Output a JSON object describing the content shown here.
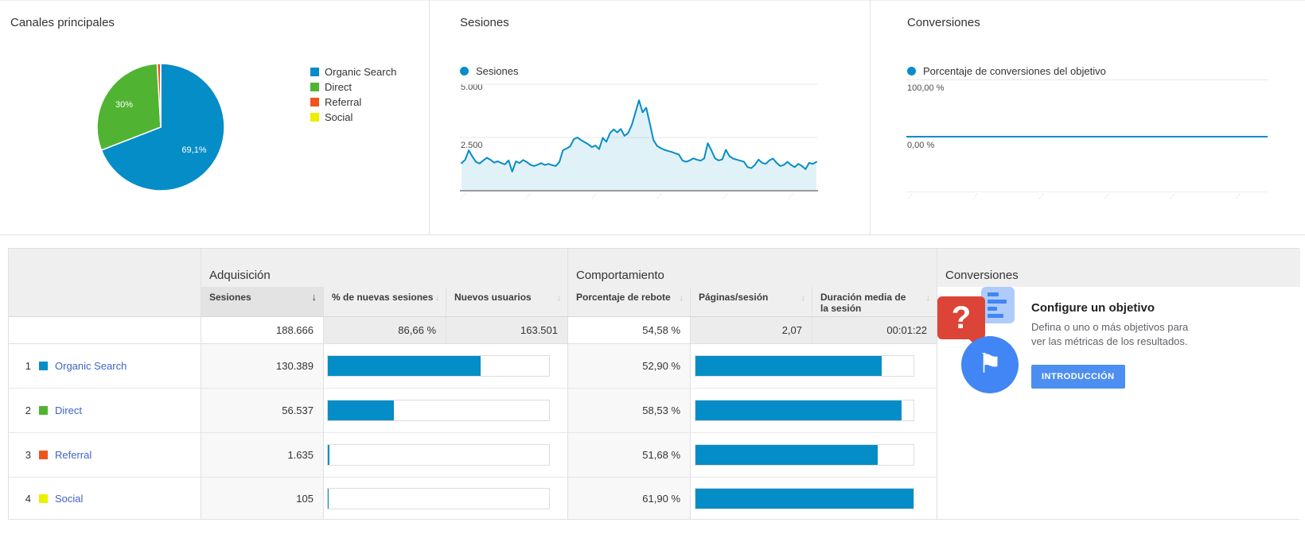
{
  "cards": {
    "channels": {
      "title": "Canales principales"
    },
    "sessions": {
      "title": "Sesiones",
      "legend_label": "Sesiones",
      "y_tick_top": "5.000",
      "y_tick_mid": "2.500"
    },
    "conversions": {
      "title": "Conversiones",
      "legend_label": "Porcentaje de conversiones del objetivo",
      "y_tick_top": "100,00 %",
      "y_tick_zero": "0,00 %"
    }
  },
  "colors": {
    "chart_blue": "#058dc7",
    "green": "#50b432",
    "orange": "#ed561b",
    "yellow": "#edef00",
    "link_blue": "#3f63c9",
    "promo_red": "#db4437",
    "promo_blue": "#4285f4",
    "button_blue": "#4d8ff0"
  },
  "chart_data": [
    {
      "type": "pie",
      "title": "Canales principales",
      "labels": [
        "Organic Search",
        "Direct",
        "Referral",
        "Social"
      ],
      "values_pct": [
        69.1,
        30.0,
        0.85,
        0.05
      ],
      "colors": [
        "#058dc7",
        "#50b432",
        "#ed561b",
        "#edef00"
      ],
      "slice_annotations": [
        "69,1%",
        "30%"
      ],
      "legend_position": "right"
    },
    {
      "type": "area",
      "title": "Sesiones",
      "series": [
        {
          "name": "Sesiones",
          "values": [
            1300,
            1450,
            1900,
            1600,
            1350,
            1280,
            1420,
            1550,
            1450,
            1320,
            1380,
            1300,
            1240,
            1420,
            900,
            1380,
            1300,
            1440,
            1350,
            1220,
            1160,
            1220,
            1300,
            1210,
            1260,
            1200,
            1160,
            1340,
            1900,
            1980,
            2080,
            2420,
            2500,
            2380,
            2280,
            2180,
            2050,
            2120,
            1950,
            2480,
            2300,
            2700,
            2880,
            2740,
            2900,
            2580,
            2700,
            3080,
            3650,
            4250,
            3680,
            3900,
            3150,
            2380,
            2100,
            2000,
            1920,
            1870,
            1820,
            1760,
            1700,
            1420,
            1360,
            1420,
            1520,
            1460,
            1410,
            1510,
            2230,
            1900,
            1520,
            1420,
            1470,
            1920,
            1620,
            1510,
            1460,
            1410,
            1360,
            1110,
            1060,
            1210,
            1460,
            1310,
            1260,
            1420,
            1510,
            1310,
            1160,
            1210,
            1360,
            1210,
            1110,
            1260,
            1160,
            1010,
            1310,
            1260,
            1350
          ]
        }
      ],
      "ylim": [
        0,
        5000
      ],
      "y_tick_labels": [
        "2.500",
        "5.000"
      ],
      "x_ticks_count": 6,
      "x_tick_labels_illegible": true,
      "grid": true
    },
    {
      "type": "line",
      "title": "Conversiones",
      "series": [
        {
          "name": "Porcentaje de conversiones del objetivo",
          "flat_value_pct": 0
        }
      ],
      "ylim": [
        0,
        100
      ],
      "y_tick_labels": [
        "0,00 %",
        "100,00 %"
      ],
      "x_ticks_count": 6,
      "x_tick_labels_illegible": true
    }
  ],
  "table": {
    "group_headers": {
      "acquisition": "Adquisición",
      "behavior": "Comportamiento",
      "conversions": "Conversiones"
    },
    "columns": {
      "sessions": "Sesiones",
      "new_sessions_pct": "% de nuevas sesiones",
      "new_users": "Nuevos usuarios",
      "bounce_rate": "Porcentaje de rebote",
      "pages_per_session": "Páginas/sesión",
      "avg_duration": "Duración media de la sesión"
    },
    "sorted_column": "sessions",
    "totals": {
      "sessions": "188.666",
      "sessions_val": 188666,
      "new_sessions_pct": "86,66 %",
      "new_users": "163.501",
      "bounce_rate": "54,58 %",
      "pages_per_session": "2,07",
      "avg_duration": "00:01:22"
    },
    "rows": [
      {
        "rank": "1",
        "channel": "Organic Search",
        "color": "#058dc7",
        "sessions": "130.389",
        "sessions_val": 130389,
        "bounce": "52,90 %",
        "bounce_val": 52.9
      },
      {
        "rank": "2",
        "channel": "Direct",
        "color": "#50b432",
        "sessions": "56.537",
        "sessions_val": 56537,
        "bounce": "58,53 %",
        "bounce_val": 58.53
      },
      {
        "rank": "3",
        "channel": "Referral",
        "color": "#ed561b",
        "sessions": "1.635",
        "sessions_val": 1635,
        "bounce": "51,68 %",
        "bounce_val": 51.68
      },
      {
        "rank": "4",
        "channel": "Social",
        "color": "#edef00",
        "sessions": "105",
        "sessions_val": 105,
        "bounce": "61,90 %",
        "bounce_val": 61.9
      }
    ],
    "promo": {
      "title": "Configure un objetivo",
      "body_line1": "Defina o uno o más objetivos para",
      "body_line2": "ver las métricas de los resultados.",
      "button_label": "INTRODUCCIÓN",
      "question_glyph": "?",
      "flag_glyph": "⚑"
    }
  }
}
